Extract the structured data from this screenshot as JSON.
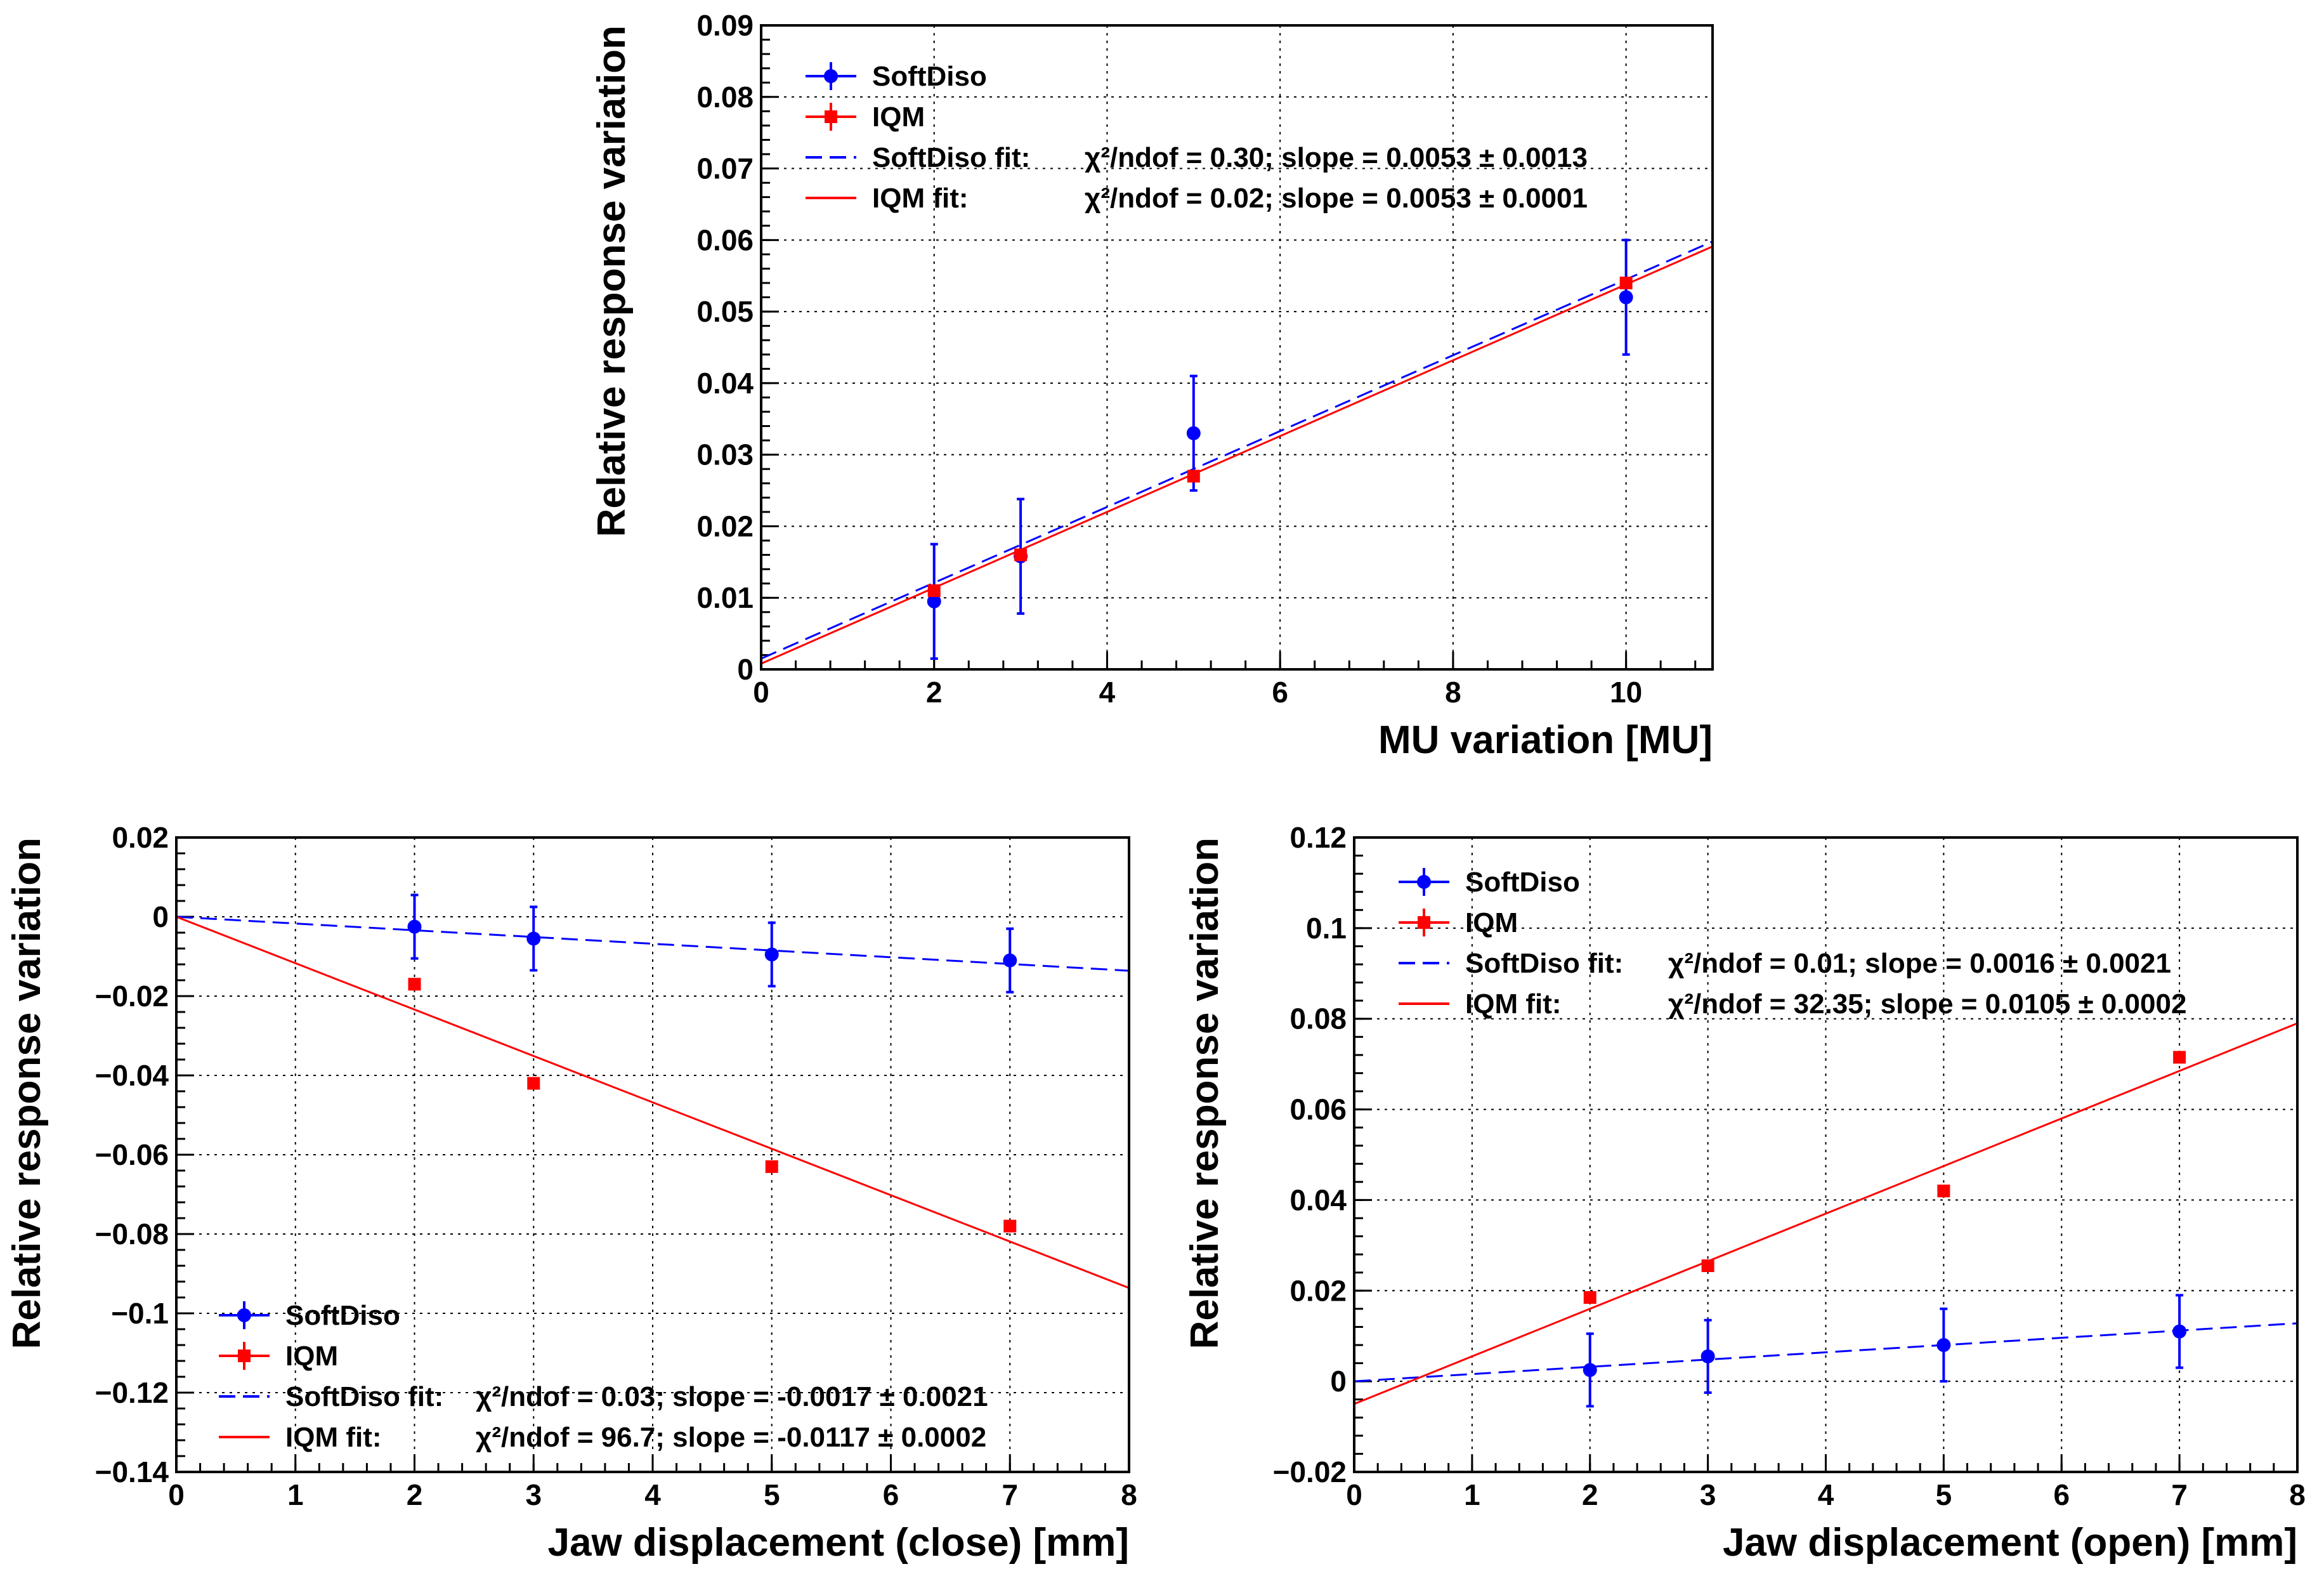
{
  "colors": {
    "softdiso": "#0000ff",
    "iqm": "#ff0000"
  },
  "chart_data": [
    {
      "id": "mu",
      "type": "scatter",
      "xlabel": "MU variation [MU]",
      "ylabel": "Relative response variation",
      "xlim": [
        0,
        11
      ],
      "ylim": [
        0,
        0.09
      ],
      "xticks": [
        0,
        2,
        4,
        6,
        8,
        10
      ],
      "xtick_labels": [
        "0",
        "2",
        "4",
        "6",
        "8",
        "10"
      ],
      "yticks": [
        0,
        0.01,
        0.02,
        0.03,
        0.04,
        0.05,
        0.06,
        0.07,
        0.08,
        0.09
      ],
      "ytick_labels": [
        "0",
        "0.01",
        "0.02",
        "0.03",
        "0.04",
        "0.05",
        "0.06",
        "0.07",
        "0.08",
        "0.09"
      ],
      "legend_position": "top-left",
      "series": [
        {
          "name": "SoftDiso",
          "marker": "circle",
          "x": [
            2,
            3,
            5,
            10
          ],
          "y": [
            0.0095,
            0.0158,
            0.033,
            0.052
          ],
          "yerr": [
            0.008,
            0.008,
            0.008,
            0.008
          ]
        },
        {
          "name": "IQM",
          "marker": "square",
          "x": [
            2,
            3,
            5,
            10
          ],
          "y": [
            0.011,
            0.016,
            0.027,
            0.054
          ],
          "yerr": [
            0.0006,
            0.0006,
            0.0006,
            0.0006
          ]
        }
      ],
      "fits": [
        {
          "label": "SoftDiso fit:",
          "stats": "χ²/ndof = 0.30; slope = 0.0053 ± 0.0013",
          "style": "dashed",
          "color_key": "softdiso",
          "intercept": 0.0015,
          "slope": 0.0053
        },
        {
          "label": "IQM fit:",
          "stats": "χ²/ndof = 0.02; slope = 0.0053 ± 0.0001",
          "style": "solid",
          "color_key": "iqm",
          "intercept": 0.0008,
          "slope": 0.0053
        }
      ]
    },
    {
      "id": "close",
      "type": "scatter",
      "xlabel": "Jaw displacement (close) [mm]",
      "ylabel": "Relative response variation",
      "xlim": [
        0,
        8
      ],
      "ylim": [
        -0.14,
        0.02
      ],
      "xticks": [
        0,
        1,
        2,
        3,
        4,
        5,
        6,
        7,
        8
      ],
      "xtick_labels": [
        "0",
        "1",
        "2",
        "3",
        "4",
        "5",
        "6",
        "7",
        "8"
      ],
      "yticks": [
        -0.14,
        -0.12,
        -0.1,
        -0.08,
        -0.06,
        -0.04,
        -0.02,
        0,
        0.02
      ],
      "ytick_labels": [
        "−0.14",
        "−0.12",
        "−0.1",
        "−0.08",
        "−0.06",
        "−0.04",
        "−0.02",
        "0",
        "0.02"
      ],
      "legend_position": "bottom-left",
      "series": [
        {
          "name": "SoftDiso",
          "marker": "circle",
          "x": [
            2,
            3,
            5,
            7
          ],
          "y": [
            -0.0025,
            -0.0055,
            -0.0095,
            -0.011
          ],
          "yerr": [
            0.008,
            0.008,
            0.008,
            0.008
          ]
        },
        {
          "name": "IQM",
          "marker": "square",
          "x": [
            2,
            3,
            5,
            7
          ],
          "y": [
            -0.017,
            -0.042,
            -0.063,
            -0.078
          ],
          "yerr": [
            0.0006,
            0.0006,
            0.0006,
            0.0006
          ]
        }
      ],
      "fits": [
        {
          "label": "SoftDiso fit:",
          "stats": "χ²/ndof = 0.03; slope = -0.0017 ± 0.0021",
          "style": "dashed",
          "color_key": "softdiso",
          "intercept": 0,
          "slope": -0.0017
        },
        {
          "label": "IQM fit:",
          "stats": "χ²/ndof = 96.7; slope = -0.0117 ± 0.0002",
          "style": "solid",
          "color_key": "iqm",
          "intercept": 0,
          "slope": -0.0117
        }
      ]
    },
    {
      "id": "open",
      "type": "scatter",
      "xlabel": "Jaw displacement (open) [mm]",
      "ylabel": "Relative response variation",
      "xlim": [
        0,
        8
      ],
      "ylim": [
        -0.02,
        0.12
      ],
      "xticks": [
        0,
        1,
        2,
        3,
        4,
        5,
        6,
        7,
        8
      ],
      "xtick_labels": [
        "0",
        "1",
        "2",
        "3",
        "4",
        "5",
        "6",
        "7",
        "8"
      ],
      "yticks": [
        -0.02,
        0,
        0.02,
        0.04,
        0.06,
        0.08,
        0.1,
        0.12
      ],
      "ytick_labels": [
        "−0.02",
        "0",
        "0.02",
        "0.04",
        "0.06",
        "0.08",
        "0.1",
        "0.12"
      ],
      "legend_position": "top-left",
      "series": [
        {
          "name": "SoftDiso",
          "marker": "circle",
          "x": [
            2,
            3,
            5,
            7
          ],
          "y": [
            0.0025,
            0.0055,
            0.008,
            0.011
          ],
          "yerr": [
            0.008,
            0.008,
            0.008,
            0.008
          ]
        },
        {
          "name": "IQM",
          "marker": "square",
          "x": [
            2,
            3,
            5,
            7
          ],
          "y": [
            0.0185,
            0.0255,
            0.042,
            0.0715
          ],
          "yerr": [
            0.0006,
            0.0006,
            0.0006,
            0.0006
          ]
        }
      ],
      "fits": [
        {
          "label": "SoftDiso fit:",
          "stats": "χ²/ndof = 0.01; slope = 0.0016 ± 0.0021",
          "style": "dashed",
          "color_key": "softdiso",
          "intercept": 0.0,
          "slope": 0.0016
        },
        {
          "label": "IQM fit:",
          "stats": "χ²/ndof = 32.35; slope = 0.0105 ± 0.0002",
          "style": "solid",
          "color_key": "iqm",
          "intercept": -0.005,
          "slope": 0.0105
        }
      ]
    }
  ]
}
